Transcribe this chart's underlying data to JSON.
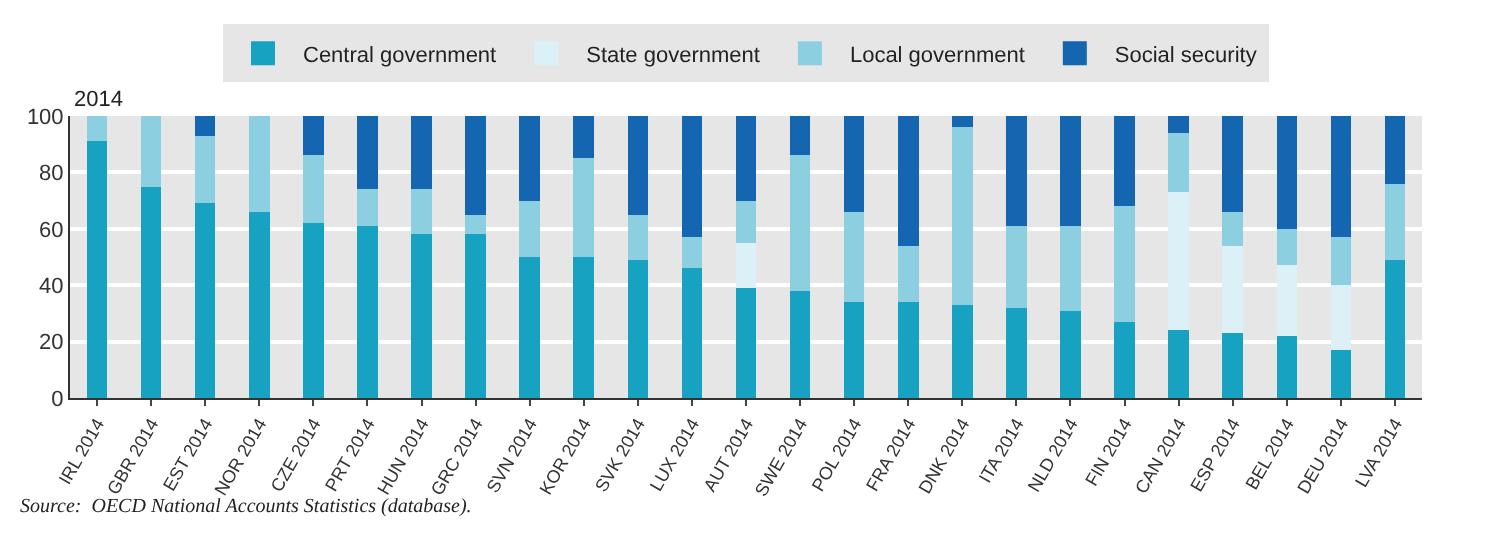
{
  "chart_data": {
    "type": "bar",
    "subtitle": "2014",
    "stacked": true,
    "legend": "top",
    "grid": "y",
    "categories": [
      "IRL 2014",
      "GBR 2014",
      "EST 2014",
      "NOR 2014",
      "CZE 2014",
      "PRT 2014",
      "HUN 2014",
      "GRC 2014",
      "SVN 2014",
      "KOR 2014",
      "SVK 2014",
      "LUX 2014",
      "AUT 2014",
      "SWE 2014",
      "POL 2014",
      "FRA 2014",
      "DNK 2014",
      "ITA 2014",
      "NLD 2014",
      "FIN 2014",
      "CAN 2014",
      "ESP 2014",
      "BEL 2014",
      "DEU 2014",
      "LVA 2014"
    ],
    "series": [
      {
        "name": "Central government",
        "color": "#17a2c2",
        "values": [
          91,
          75,
          69,
          66,
          62,
          61,
          58,
          58,
          50,
          50,
          49,
          46,
          39,
          38,
          34,
          34,
          33,
          32,
          31,
          27,
          24,
          23,
          22,
          17,
          49
        ]
      },
      {
        "name": "State government",
        "color": "#dcf0f8",
        "values": [
          0,
          0,
          0,
          0,
          0,
          0,
          0,
          0,
          0,
          0,
          0,
          0,
          16,
          0,
          0,
          0,
          0,
          0,
          0,
          0,
          49,
          31,
          25,
          23,
          0
        ]
      },
      {
        "name": "Local government",
        "color": "#8ccfe0",
        "values": [
          9,
          25,
          24,
          34,
          24,
          13,
          16,
          7,
          20,
          35,
          16,
          11,
          15,
          48,
          32,
          20,
          63,
          29,
          30,
          41,
          21,
          12,
          13,
          17,
          27
        ]
      },
      {
        "name": "Social security",
        "color": "#1566b0",
        "values": [
          0,
          0,
          7,
          0,
          14,
          26,
          26,
          35,
          30,
          15,
          35,
          43,
          30,
          14,
          34,
          46,
          4,
          39,
          39,
          32,
          6,
          34,
          40,
          43,
          24
        ]
      }
    ],
    "ylim": [
      0,
      100
    ],
    "yticks": [
      0,
      20,
      40,
      60,
      80,
      100
    ],
    "annotations": [
      "Source:  OECD National Accounts Statistics (database)."
    ]
  }
}
